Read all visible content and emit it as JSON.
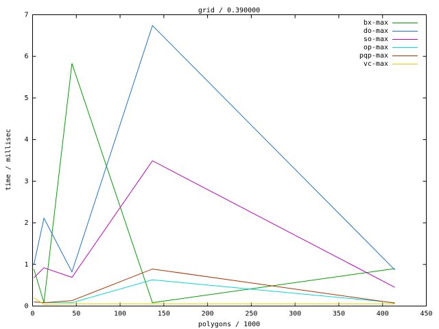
{
  "chart_data": {
    "type": "line",
    "title": "grid / 0.390000",
    "x_label": "polygons / 1000",
    "y_label": "time / millisec",
    "x": [
      1.5,
      13,
      45,
      137,
      414
    ],
    "series": [
      {
        "name": "bx-max",
        "color": "#00a000",
        "values": [
          0.89,
          0.08,
          5.83,
          0.08,
          0.9
        ]
      },
      {
        "name": "do-max",
        "color": "#1c74c8",
        "values": [
          1.0,
          2.11,
          0.82,
          6.74,
          0.87
        ]
      },
      {
        "name": "so-max",
        "color": "#c000c0",
        "values": [
          0.68,
          0.92,
          0.69,
          3.49,
          0.45
        ]
      },
      {
        "name": "op-max",
        "color": "#00d8d8",
        "values": [
          0.1,
          0.08,
          0.08,
          0.63,
          0.08
        ]
      },
      {
        "name": "pqp-max",
        "color": "#b03000",
        "values": [
          0.1,
          0.08,
          0.13,
          0.89,
          0.07
        ]
      },
      {
        "name": "vc-max",
        "color": "#e0d000",
        "values": [
          0.2,
          0.04,
          0.05,
          0.05,
          0.05
        ]
      }
    ],
    "xlim": [
      0,
      450
    ],
    "xticks": [
      0,
      50,
      100,
      150,
      200,
      250,
      300,
      350,
      400,
      450
    ],
    "ylim": [
      0,
      7
    ],
    "yticks": [
      0,
      1,
      2,
      3,
      4,
      5,
      6,
      7
    ],
    "legend": "top-right"
  }
}
